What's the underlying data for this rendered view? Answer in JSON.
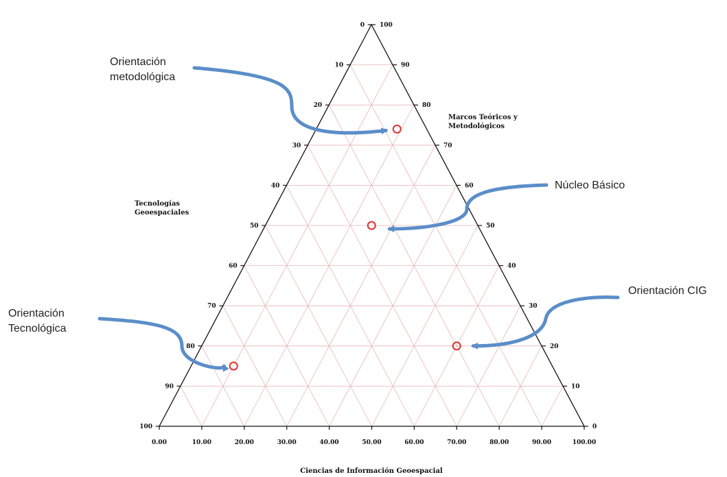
{
  "chart_data": {
    "type": "scatter",
    "subtype": "ternary",
    "axes": {
      "left": {
        "label_lines": [
          "Tecnologías",
          "Geoespaciales"
        ],
        "ticks": [
          "0",
          "10",
          "20",
          "30",
          "40",
          "50",
          "60",
          "70",
          "80",
          "90",
          "100"
        ]
      },
      "right": {
        "label_lines": [
          "Marcos Teóricos y",
          "Metodológicos"
        ],
        "ticks": [
          "100",
          "90",
          "80",
          "70",
          "60",
          "50",
          "40",
          "30",
          "20",
          "10",
          "0"
        ]
      },
      "bottom": {
        "label": "Ciencias de Información Geoespacial",
        "ticks": [
          "0.00",
          "10.00",
          "20.00",
          "30.00",
          "40.00",
          "50.00",
          "60.00",
          "70.00",
          "80.00",
          "90.00",
          "100.00"
        ]
      }
    },
    "grid": true,
    "grid_color": "#e8b4b8",
    "marker_color": "#e03030",
    "arrow_color": "#5b8ec9",
    "points": [
      {
        "annotation": [
          "Orientación",
          "metodológica"
        ],
        "ciencias": 19,
        "marcos": 74,
        "tecnologias": 7
      },
      {
        "annotation": [
          "Núcleo Básico"
        ],
        "ciencias": 25,
        "marcos": 50,
        "tecnologias": 25
      },
      {
        "annotation": [
          "Orientación CIG"
        ],
        "ciencias": 60,
        "marcos": 20,
        "tecnologias": 20
      },
      {
        "annotation": [
          "Orientación",
          "Tecnológica"
        ],
        "ciencias": 10,
        "marcos": 15,
        "tecnologias": 75
      }
    ]
  }
}
